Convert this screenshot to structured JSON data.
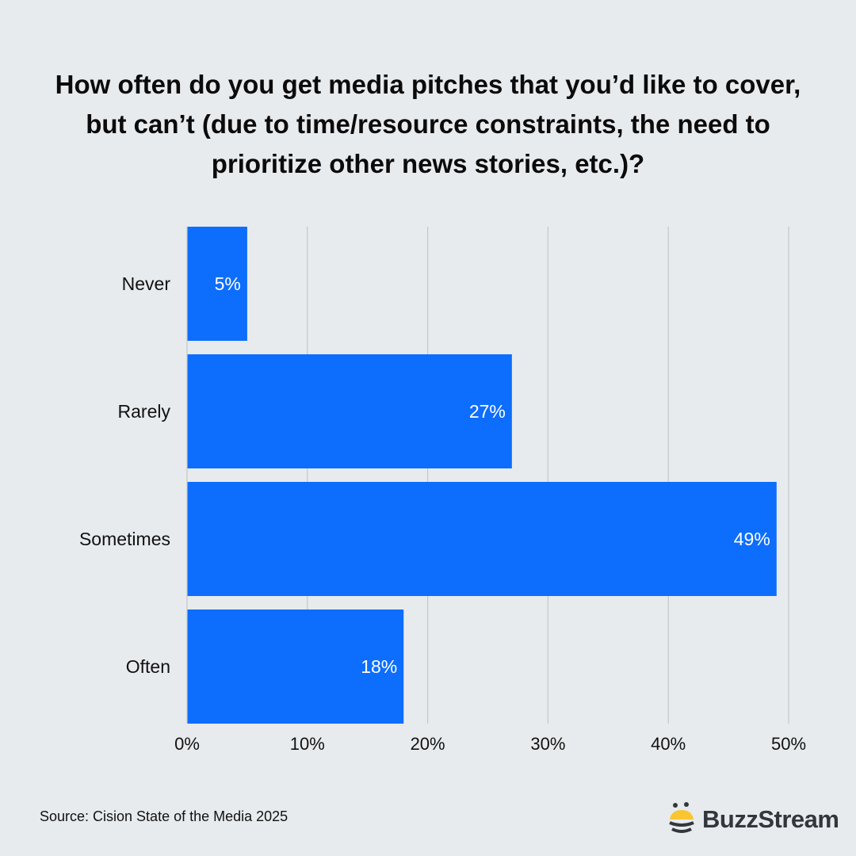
{
  "title": "How often do you get media pitches that you’d like to cover, but can’t (due to time/resource constraints, the need to prioritize other news stories, etc.)?",
  "source": "Source: Cision State of the Media 2025",
  "brand": {
    "name": "BuzzStream",
    "colors": {
      "yellow": "#f9c531",
      "dark": "#33363a"
    }
  },
  "chart_data": {
    "type": "bar",
    "orientation": "horizontal",
    "categories": [
      "Never",
      "Rarely",
      "Sometimes",
      "Often"
    ],
    "values": [
      5,
      27,
      49,
      18
    ],
    "data_labels": [
      "5%",
      "27%",
      "49%",
      "18%"
    ],
    "xlim": [
      0,
      50
    ],
    "x_ticks": [
      0,
      10,
      20,
      30,
      40,
      50
    ],
    "x_tick_labels": [
      "0%",
      "10%",
      "20%",
      "30%",
      "40%",
      "50%"
    ],
    "grid": "vertical",
    "bar_color": "#0d6efd",
    "label_color": "#ffffff"
  }
}
